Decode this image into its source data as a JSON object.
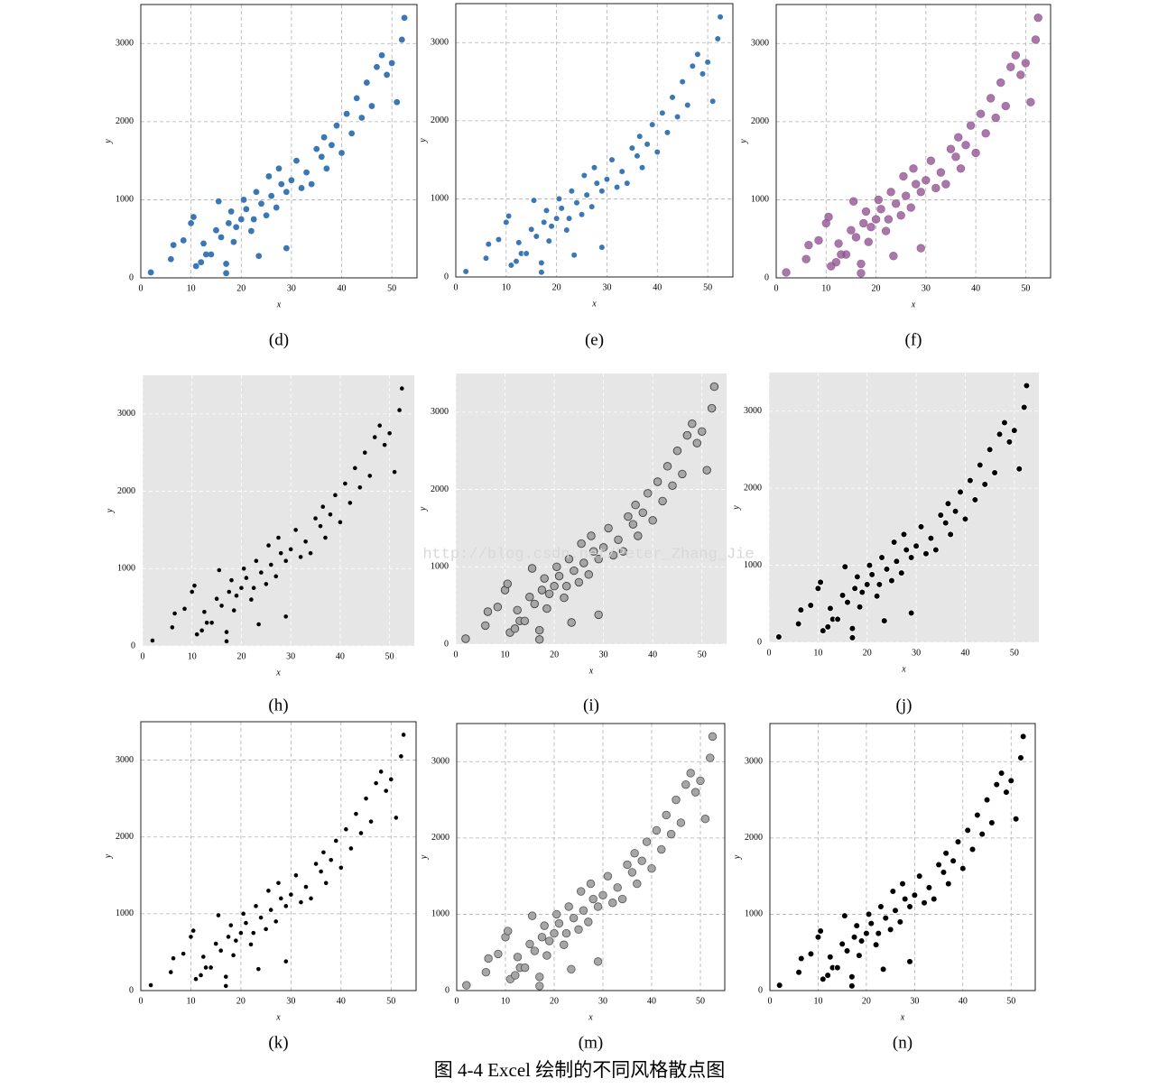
{
  "chart_data": [
    {
      "type": "scatter",
      "caption": "(d)",
      "x_label": "x",
      "y_label": "y",
      "xlim": [
        0,
        55
      ],
      "ylim": [
        0,
        3500
      ],
      "xticks": [
        0,
        10,
        20,
        30,
        40,
        50
      ],
      "yticks": [
        0,
        1000,
        2000,
        3000
      ],
      "grid": true,
      "frame": true,
      "background": "#ffffff",
      "grid_color": "#b0b0b0",
      "color": "#3a78b5",
      "marker_size": "medium",
      "x": [
        2,
        6,
        6.5,
        8.5,
        10,
        10.5,
        11,
        12,
        12.5,
        13,
        14,
        15,
        15.5,
        16,
        17,
        17,
        17.5,
        18,
        18.5,
        19,
        20,
        20.5,
        21,
        22,
        22.5,
        23,
        23.5,
        24,
        25,
        25.5,
        26,
        27,
        27.5,
        28,
        29,
        29,
        30,
        31,
        32,
        33,
        34,
        35,
        36,
        36.5,
        37,
        38,
        39,
        40,
        41,
        42,
        43,
        44,
        45,
        46,
        47,
        48,
        49,
        50,
        51,
        52,
        52.5
      ],
      "values": [
        70,
        240,
        420,
        480,
        700,
        780,
        150,
        200,
        440,
        300,
        300,
        610,
        980,
        520,
        180,
        60,
        700,
        850,
        460,
        650,
        750,
        1000,
        880,
        600,
        750,
        1100,
        280,
        950,
        800,
        1300,
        1050,
        900,
        1400,
        1200,
        380,
        1100,
        1250,
        1500,
        1150,
        1350,
        1200,
        1650,
        1550,
        1800,
        1400,
        1700,
        1950,
        1600,
        2100,
        1850,
        2300,
        2050,
        2500,
        2200,
        2700,
        2850,
        2600,
        2750,
        2250,
        3050,
        3330
      ]
    },
    {
      "type": "scatter",
      "caption": "(e)",
      "x_label": "x",
      "y_label": "y",
      "xlim": [
        0,
        55
      ],
      "ylim": [
        0,
        3500
      ],
      "xticks": [
        0,
        10,
        20,
        30,
        40,
        50
      ],
      "yticks": [
        0,
        1000,
        2000,
        3000
      ],
      "grid": true,
      "frame": true,
      "background": "#ffffff",
      "grid_color": "#b0b0b0",
      "color": "#3a78b5",
      "edgecolor": "#ffffff",
      "marker_size": "medium",
      "x": [
        2,
        6,
        6.5,
        8.5,
        10,
        10.5,
        11,
        12,
        12.5,
        13,
        14,
        15,
        15.5,
        16,
        17,
        17,
        17.5,
        18,
        18.5,
        19,
        20,
        20.5,
        21,
        22,
        22.5,
        23,
        23.5,
        24,
        25,
        25.5,
        26,
        27,
        27.5,
        28,
        29,
        29,
        30,
        31,
        32,
        33,
        34,
        35,
        36,
        36.5,
        37,
        38,
        39,
        40,
        41,
        42,
        43,
        44,
        45,
        46,
        47,
        48,
        49,
        50,
        51,
        52,
        52.5
      ],
      "values": [
        70,
        240,
        420,
        480,
        700,
        780,
        150,
        200,
        440,
        300,
        300,
        610,
        980,
        520,
        180,
        60,
        700,
        850,
        460,
        650,
        750,
        1000,
        880,
        600,
        750,
        1100,
        280,
        950,
        800,
        1300,
        1050,
        900,
        1400,
        1200,
        380,
        1100,
        1250,
        1500,
        1150,
        1350,
        1200,
        1650,
        1550,
        1800,
        1400,
        1700,
        1950,
        1600,
        2100,
        1850,
        2300,
        2050,
        2500,
        2200,
        2700,
        2850,
        2600,
        2750,
        2250,
        3050,
        3330
      ]
    },
    {
      "type": "scatter",
      "caption": "(f)",
      "x_label": "x",
      "y_label": "y",
      "xlim": [
        0,
        55
      ],
      "ylim": [
        0,
        3500
      ],
      "xticks": [
        0,
        10,
        20,
        30,
        40,
        50
      ],
      "yticks": [
        0,
        1000,
        2000,
        3000
      ],
      "grid": true,
      "frame": true,
      "background": "#ffffff",
      "grid_color": "#b0b0b0",
      "color": "#8e4a8e",
      "edgecolor": "#9a6a9a",
      "alpha": 0.75,
      "marker_size": "large",
      "x": [
        2,
        6,
        6.5,
        8.5,
        10,
        10.5,
        11,
        12,
        12.5,
        13,
        14,
        15,
        15.5,
        16,
        17,
        17,
        17.5,
        18,
        18.5,
        19,
        20,
        20.5,
        21,
        22,
        22.5,
        23,
        23.5,
        24,
        25,
        25.5,
        26,
        27,
        27.5,
        28,
        29,
        29,
        30,
        31,
        32,
        33,
        34,
        35,
        36,
        36.5,
        37,
        38,
        39,
        40,
        41,
        42,
        43,
        44,
        45,
        46,
        47,
        48,
        49,
        50,
        51,
        52,
        52.5
      ],
      "values": [
        70,
        240,
        420,
        480,
        700,
        780,
        150,
        200,
        440,
        300,
        300,
        610,
        980,
        520,
        180,
        60,
        700,
        850,
        460,
        650,
        750,
        1000,
        880,
        600,
        750,
        1100,
        280,
        950,
        800,
        1300,
        1050,
        900,
        1400,
        1200,
        380,
        1100,
        1250,
        1500,
        1150,
        1350,
        1200,
        1650,
        1550,
        1800,
        1400,
        1700,
        1950,
        1600,
        2100,
        1850,
        2300,
        2050,
        2500,
        2200,
        2700,
        2850,
        2600,
        2750,
        2250,
        3050,
        3330
      ]
    },
    {
      "type": "scatter",
      "caption": "(h)",
      "x_label": "x",
      "y_label": "y",
      "xlim": [
        0,
        55
      ],
      "ylim": [
        0,
        3500
      ],
      "xticks": [
        0,
        10,
        20,
        30,
        40,
        50
      ],
      "yticks": [
        0,
        1000,
        2000,
        3000
      ],
      "grid": true,
      "frame": false,
      "background": "#e6e6e6",
      "grid_color": "#ffffff",
      "color": "#000000",
      "marker_size": "small",
      "x": [
        2,
        6,
        6.5,
        8.5,
        10,
        10.5,
        11,
        12,
        12.5,
        13,
        14,
        15,
        15.5,
        16,
        17,
        17,
        17.5,
        18,
        18.5,
        19,
        20,
        20.5,
        21,
        22,
        22.5,
        23,
        23.5,
        24,
        25,
        25.5,
        26,
        27,
        27.5,
        28,
        29,
        29,
        30,
        31,
        32,
        33,
        34,
        35,
        36,
        36.5,
        37,
        38,
        39,
        40,
        41,
        42,
        43,
        44,
        45,
        46,
        47,
        48,
        49,
        50,
        51,
        52,
        52.5
      ],
      "values": [
        70,
        240,
        420,
        480,
        700,
        780,
        150,
        200,
        440,
        300,
        300,
        610,
        980,
        520,
        180,
        60,
        700,
        850,
        460,
        650,
        750,
        1000,
        880,
        600,
        750,
        1100,
        280,
        950,
        800,
        1300,
        1050,
        900,
        1400,
        1200,
        380,
        1100,
        1250,
        1500,
        1150,
        1350,
        1200,
        1650,
        1550,
        1800,
        1400,
        1700,
        1950,
        1600,
        2100,
        1850,
        2300,
        2050,
        2500,
        2200,
        2700,
        2850,
        2600,
        2750,
        2250,
        3050,
        3330
      ]
    },
    {
      "type": "scatter",
      "caption": "(i)",
      "x_label": "x",
      "y_label": "y",
      "xlim": [
        0,
        55
      ],
      "ylim": [
        0,
        3500
      ],
      "xticks": [
        0,
        10,
        20,
        30,
        40,
        50
      ],
      "yticks": [
        0,
        1000,
        2000,
        3000
      ],
      "grid": true,
      "frame": false,
      "background": "#e6e6e6",
      "grid_color": "#ffffff",
      "color": "#a6a6a6",
      "edgecolor": "#333333",
      "marker_size": "large",
      "x": [
        2,
        6,
        6.5,
        8.5,
        10,
        10.5,
        11,
        12,
        12.5,
        13,
        14,
        15,
        15.5,
        16,
        17,
        17,
        17.5,
        18,
        18.5,
        19,
        20,
        20.5,
        21,
        22,
        22.5,
        23,
        23.5,
        24,
        25,
        25.5,
        26,
        27,
        27.5,
        28,
        29,
        29,
        30,
        31,
        32,
        33,
        34,
        35,
        36,
        36.5,
        37,
        38,
        39,
        40,
        41,
        42,
        43,
        44,
        45,
        46,
        47,
        48,
        49,
        50,
        51,
        52,
        52.5
      ],
      "values": [
        70,
        240,
        420,
        480,
        700,
        780,
        150,
        200,
        440,
        300,
        300,
        610,
        980,
        520,
        180,
        60,
        700,
        850,
        460,
        650,
        750,
        1000,
        880,
        600,
        750,
        1100,
        280,
        950,
        800,
        1300,
        1050,
        900,
        1400,
        1200,
        380,
        1100,
        1250,
        1500,
        1150,
        1350,
        1200,
        1650,
        1550,
        1800,
        1400,
        1700,
        1950,
        1600,
        2100,
        1850,
        2300,
        2050,
        2500,
        2200,
        2700,
        2850,
        2600,
        2750,
        2250,
        3050,
        3330
      ]
    },
    {
      "type": "scatter",
      "caption": "(j)",
      "x_label": "x",
      "y_label": "y",
      "xlim": [
        0,
        55
      ],
      "ylim": [
        0,
        3500
      ],
      "xticks": [
        0,
        10,
        20,
        30,
        40,
        50
      ],
      "yticks": [
        0,
        1000,
        2000,
        3000
      ],
      "grid": true,
      "frame": false,
      "background": "#e6e6e6",
      "grid_color": "#ffffff",
      "color": "#000000",
      "edgecolor": "#ffffff",
      "marker_size": "medium",
      "x": [
        2,
        6,
        6.5,
        8.5,
        10,
        10.5,
        11,
        12,
        12.5,
        13,
        14,
        15,
        15.5,
        16,
        17,
        17,
        17.5,
        18,
        18.5,
        19,
        20,
        20.5,
        21,
        22,
        22.5,
        23,
        23.5,
        24,
        25,
        25.5,
        26,
        27,
        27.5,
        28,
        29,
        29,
        30,
        31,
        32,
        33,
        34,
        35,
        36,
        36.5,
        37,
        38,
        39,
        40,
        41,
        42,
        43,
        44,
        45,
        46,
        47,
        48,
        49,
        50,
        51,
        52,
        52.5
      ],
      "values": [
        70,
        240,
        420,
        480,
        700,
        780,
        150,
        200,
        440,
        300,
        300,
        610,
        980,
        520,
        180,
        60,
        700,
        850,
        460,
        650,
        750,
        1000,
        880,
        600,
        750,
        1100,
        280,
        950,
        800,
        1300,
        1050,
        900,
        1400,
        1200,
        380,
        1100,
        1250,
        1500,
        1150,
        1350,
        1200,
        1650,
        1550,
        1800,
        1400,
        1700,
        1950,
        1600,
        2100,
        1850,
        2300,
        2050,
        2500,
        2200,
        2700,
        2850,
        2600,
        2750,
        2250,
        3050,
        3330
      ]
    },
    {
      "type": "scatter",
      "caption": "(k)",
      "x_label": "x",
      "y_label": "y",
      "xlim": [
        0,
        55
      ],
      "ylim": [
        0,
        3500
      ],
      "xticks": [
        0,
        10,
        20,
        30,
        40,
        50
      ],
      "yticks": [
        0,
        1000,
        2000,
        3000
      ],
      "grid": true,
      "frame": true,
      "background": "#ffffff",
      "grid_color": "#b0b0b0",
      "color": "#000000",
      "marker_size": "small",
      "x": [
        2,
        6,
        6.5,
        8.5,
        10,
        10.5,
        11,
        12,
        12.5,
        13,
        14,
        15,
        15.5,
        16,
        17,
        17,
        17.5,
        18,
        18.5,
        19,
        20,
        20.5,
        21,
        22,
        22.5,
        23,
        23.5,
        24,
        25,
        25.5,
        26,
        27,
        27.5,
        28,
        29,
        29,
        30,
        31,
        32,
        33,
        34,
        35,
        36,
        36.5,
        37,
        38,
        39,
        40,
        41,
        42,
        43,
        44,
        45,
        46,
        47,
        48,
        49,
        50,
        51,
        52,
        52.5
      ],
      "values": [
        70,
        240,
        420,
        480,
        700,
        780,
        150,
        200,
        440,
        300,
        300,
        610,
        980,
        520,
        180,
        60,
        700,
        850,
        460,
        650,
        750,
        1000,
        880,
        600,
        750,
        1100,
        280,
        950,
        800,
        1300,
        1050,
        900,
        1400,
        1200,
        380,
        1100,
        1250,
        1500,
        1150,
        1350,
        1200,
        1650,
        1550,
        1800,
        1400,
        1700,
        1950,
        1600,
        2100,
        1850,
        2300,
        2050,
        2500,
        2200,
        2700,
        2850,
        2600,
        2750,
        2250,
        3050,
        3330
      ]
    },
    {
      "type": "scatter",
      "caption": "(m)",
      "x_label": "x",
      "y_label": "y",
      "xlim": [
        0,
        55
      ],
      "ylim": [
        0,
        3500
      ],
      "xticks": [
        0,
        10,
        20,
        30,
        40,
        50
      ],
      "yticks": [
        0,
        1000,
        2000,
        3000
      ],
      "grid": true,
      "frame": true,
      "background": "#ffffff",
      "grid_color": "#b0b0b0",
      "color": "#a6a6a6",
      "edgecolor": "#555555",
      "marker_size": "large",
      "x": [
        2,
        6,
        6.5,
        8.5,
        10,
        10.5,
        11,
        12,
        12.5,
        13,
        14,
        15,
        15.5,
        16,
        17,
        17,
        17.5,
        18,
        18.5,
        19,
        20,
        20.5,
        21,
        22,
        22.5,
        23,
        23.5,
        24,
        25,
        25.5,
        26,
        27,
        27.5,
        28,
        29,
        29,
        30,
        31,
        32,
        33,
        34,
        35,
        36,
        36.5,
        37,
        38,
        39,
        40,
        41,
        42,
        43,
        44,
        45,
        46,
        47,
        48,
        49,
        50,
        51,
        52,
        52.5
      ],
      "values": [
        70,
        240,
        420,
        480,
        700,
        780,
        150,
        200,
        440,
        300,
        300,
        610,
        980,
        520,
        180,
        60,
        700,
        850,
        460,
        650,
        750,
        1000,
        880,
        600,
        750,
        1100,
        280,
        950,
        800,
        1300,
        1050,
        900,
        1400,
        1200,
        380,
        1100,
        1250,
        1500,
        1150,
        1350,
        1200,
        1650,
        1550,
        1800,
        1400,
        1700,
        1950,
        1600,
        2100,
        1850,
        2300,
        2050,
        2500,
        2200,
        2700,
        2850,
        2600,
        2750,
        2250,
        3050,
        3330
      ]
    },
    {
      "type": "scatter",
      "caption": "(n)",
      "x_label": "x",
      "y_label": "y",
      "xlim": [
        0,
        55
      ],
      "ylim": [
        0,
        3500
      ],
      "xticks": [
        0,
        10,
        20,
        30,
        40,
        50
      ],
      "yticks": [
        0,
        1000,
        2000,
        3000
      ],
      "grid": true,
      "frame": true,
      "background": "#ffffff",
      "grid_color": "#b0b0b0",
      "color": "#000000",
      "edgecolor": "#ffffff",
      "marker_size": "medium",
      "x": [
        2,
        6,
        6.5,
        8.5,
        10,
        10.5,
        11,
        12,
        12.5,
        13,
        14,
        15,
        15.5,
        16,
        17,
        17,
        17.5,
        18,
        18.5,
        19,
        20,
        20.5,
        21,
        22,
        22.5,
        23,
        23.5,
        24,
        25,
        25.5,
        26,
        27,
        27.5,
        28,
        29,
        29,
        30,
        31,
        32,
        33,
        34,
        35,
        36,
        36.5,
        37,
        38,
        39,
        40,
        41,
        42,
        43,
        44,
        45,
        46,
        47,
        48,
        49,
        50,
        51,
        52,
        52.5
      ],
      "values": [
        70,
        240,
        420,
        480,
        700,
        780,
        150,
        200,
        440,
        300,
        300,
        610,
        980,
        520,
        180,
        60,
        700,
        850,
        460,
        650,
        750,
        1000,
        880,
        600,
        750,
        1100,
        280,
        950,
        800,
        1300,
        1050,
        900,
        1400,
        1200,
        380,
        1100,
        1250,
        1500,
        1150,
        1350,
        1200,
        1650,
        1550,
        1800,
        1400,
        1700,
        1950,
        1600,
        2100,
        1850,
        2300,
        2050,
        2500,
        2200,
        2700,
        2850,
        2600,
        2750,
        2250,
        3050,
        3330
      ]
    }
  ],
  "watermark": "http://blog.csdn.net/Peter_Zhang_Jie",
  "figure_caption": "图 4-4 Excel 绘制的不同风格散点图"
}
